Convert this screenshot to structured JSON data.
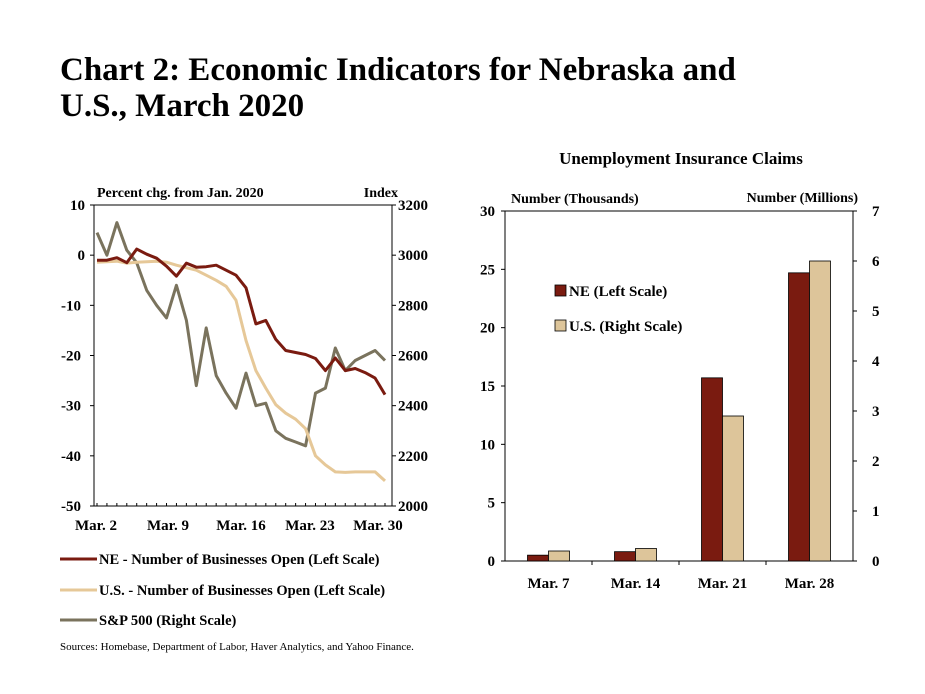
{
  "title": {
    "line1": "Chart 2: Economic Indicators for Nebraska and",
    "line2": "U.S., March 2020"
  },
  "sources": "Sources: Homebase, Department of Labor, Haver Analytics, and Yahoo Finance.",
  "chart_data": [
    {
      "type": "line",
      "title": "",
      "left_axis_label": "Percent chg. from Jan. 2020",
      "right_axis_label": "Index",
      "x_tick_labels": [
        "Mar. 2",
        "Mar. 9",
        "Mar. 16",
        "Mar. 23",
        "Mar. 30"
      ],
      "x": [
        2,
        3,
        4,
        5,
        6,
        7,
        8,
        9,
        10,
        11,
        12,
        13,
        14,
        15,
        16,
        17,
        18,
        19,
        20,
        21,
        22,
        23,
        24,
        25,
        26,
        27,
        28,
        29,
        30,
        31
      ],
      "ylim_left": [
        -50,
        10
      ],
      "yticks_left": [
        "10",
        "0",
        "-10",
        "-20",
        "-30",
        "-40",
        "-50"
      ],
      "ylim_right": [
        2000,
        3200
      ],
      "yticks_right": [
        "3200",
        "3000",
        "2800",
        "2600",
        "2400",
        "2200",
        "2000"
      ],
      "series": [
        {
          "name": "NE - Number of Businesses Open (Left Scale)",
          "axis": "left",
          "color": "#7a1b10",
          "values": [
            -1,
            -1,
            -0.5,
            -1.5,
            1.2,
            0.2,
            -0.6,
            -2.2,
            -4.2,
            -1.6,
            -2.4,
            -2.3,
            -2,
            -3,
            -4,
            -6.5,
            -13.7,
            -13,
            -16.8,
            -19,
            -19.4,
            -19.8,
            -20.6,
            -23,
            -20.5,
            -23,
            -22.6,
            -23.4,
            -24.5,
            -27.8
          ]
        },
        {
          "name": "U.S. - Number of Businesses Open (Left Scale)",
          "axis": "left",
          "color": "#e6c898",
          "values": [
            -1.4,
            -1.3,
            -1.2,
            -1.6,
            -1.4,
            -1.3,
            -1.2,
            -1.4,
            -2,
            -2.5,
            -3,
            -4,
            -5,
            -6.2,
            -9,
            -17,
            -23,
            -26.5,
            -29.8,
            -31.5,
            -32.7,
            -34.6,
            -40,
            -41.8,
            -43.2,
            -43.3,
            -43.2,
            -43.2,
            -43.2,
            -45
          ]
        },
        {
          "name": "S&P 500 (Right Scale)",
          "axis": "right",
          "color": "#7a735d",
          "values": [
            3090,
            3000,
            3130,
            3020,
            2970,
            2860,
            2800,
            2750,
            2880,
            2740,
            2480,
            2710,
            2520,
            2450,
            2390,
            2530,
            2400,
            2410,
            2300,
            2270,
            2255,
            2240,
            2450,
            2470,
            2630,
            2540,
            2580,
            2600,
            2620,
            2580
          ]
        }
      ]
    },
    {
      "type": "bar",
      "title": "Unemployment Insurance Claims",
      "left_axis_label": "Number (Thousands)",
      "right_axis_label": "Number (Millions)",
      "categories": [
        "Mar. 7",
        "Mar. 14",
        "Mar. 21",
        "Mar. 28"
      ],
      "ylim_left": [
        0,
        30
      ],
      "yticks_left": [
        "30",
        "25",
        "20",
        "15",
        "10",
        "5",
        "0"
      ],
      "ylim_right": [
        0,
        7
      ],
      "yticks_right": [
        "7",
        "6",
        "5",
        "4",
        "3",
        "2",
        "1",
        "0"
      ],
      "series": [
        {
          "name": "NE (Left Scale)",
          "axis": "left",
          "color": "#7a1b10",
          "values": [
            0.5,
            0.8,
            15.7,
            24.7
          ]
        },
        {
          "name": "U.S. (Right Scale)",
          "axis": "right",
          "color": "#ddc59a",
          "values": [
            0.2,
            0.25,
            2.9,
            6.0
          ]
        }
      ]
    }
  ]
}
